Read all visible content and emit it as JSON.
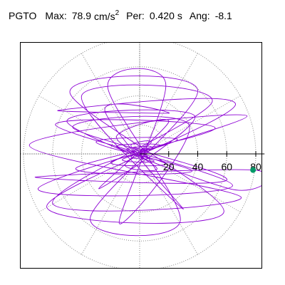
{
  "header": {
    "station": "PGTO",
    "max_label": "Max:",
    "max_value": "78.9",
    "max_unit": "cm/s",
    "max_unit_exp": "2",
    "per_label": "Per:",
    "per_value": "0.420",
    "per_unit": "s",
    "ang_label": "Ang:",
    "ang_value": "-8.1"
  },
  "colors": {
    "trace": "#8c00d4",
    "peak_marker": "#009966",
    "grid": "#888888",
    "axis": "#000000"
  },
  "chart_data": {
    "type": "polar",
    "title": "",
    "radial_ticks": [
      20,
      40,
      60,
      80
    ],
    "tick_labels": [
      "20",
      "40",
      "60",
      "80"
    ],
    "rmax": 80,
    "grid": true,
    "peak": {
      "value": 78.9,
      "angle_deg": -8.1
    },
    "trace": [
      [
        0,
        0
      ],
      [
        5,
        2
      ],
      [
        -4,
        4
      ],
      [
        6,
        -3
      ],
      [
        -6,
        -2
      ],
      [
        8,
        5
      ],
      [
        -9,
        3
      ],
      [
        10,
        -5
      ],
      [
        -12,
        -4
      ],
      [
        14,
        6
      ],
      [
        -16,
        5
      ],
      [
        18,
        -7
      ],
      [
        -20,
        -6
      ],
      [
        26,
        10
      ],
      [
        -30,
        8
      ],
      [
        36,
        -12
      ],
      [
        -44,
        -10
      ],
      [
        52,
        18
      ],
      [
        -58,
        20
      ],
      [
        64,
        -22
      ],
      [
        -70,
        -24
      ],
      [
        74,
        26
      ],
      [
        -76,
        6
      ],
      [
        70,
        -30
      ],
      [
        -60,
        -34
      ],
      [
        50,
        36
      ],
      [
        -40,
        40
      ],
      [
        30,
        -38
      ],
      [
        -24,
        30
      ],
      [
        20,
        28
      ],
      [
        -56,
        30
      ],
      [
        66,
        34
      ],
      [
        -64,
        -36
      ],
      [
        58,
        -40
      ],
      [
        -48,
        42
      ],
      [
        40,
        44
      ],
      [
        -34,
        -44
      ],
      [
        28,
        -46
      ],
      [
        -22,
        46
      ],
      [
        18,
        48
      ],
      [
        -14,
        -48
      ],
      [
        34,
        20
      ],
      [
        -46,
        18
      ],
      [
        60,
        -18
      ],
      [
        -72,
        -16
      ],
      [
        78.1,
        -11.1
      ],
      [
        62,
        -24
      ],
      [
        -50,
        22
      ],
      [
        38,
        26
      ],
      [
        -28,
        -24
      ],
      [
        20,
        22
      ],
      [
        -16,
        12
      ],
      [
        12,
        -10
      ],
      [
        -10,
        -8
      ],
      [
        8,
        8
      ],
      [
        -6,
        6
      ],
      [
        4,
        -4
      ],
      [
        0,
        0
      ]
    ]
  }
}
